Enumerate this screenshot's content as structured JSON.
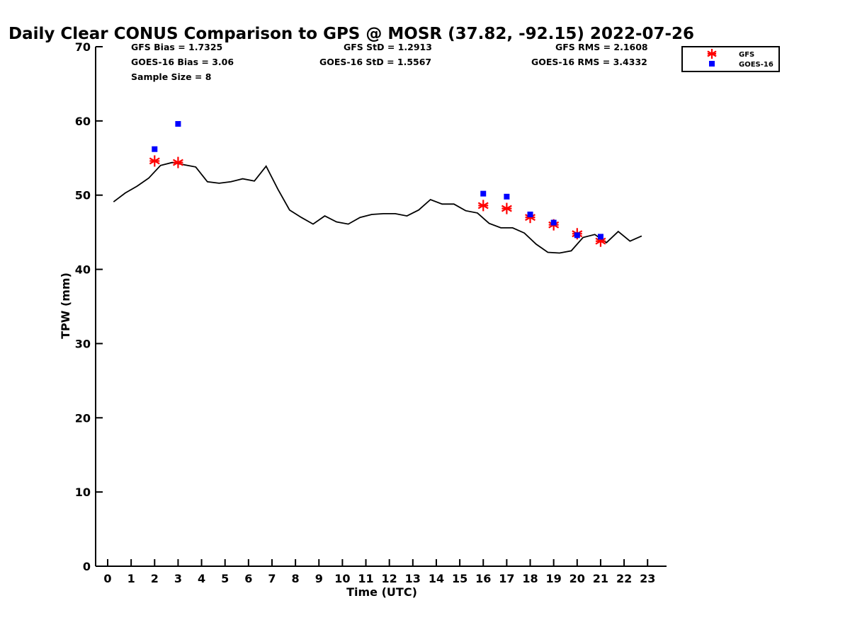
{
  "chart_data": {
    "type": "line",
    "title": "Daily Clear CONUS Comparison to GPS @ MOSR (37.82, -92.15) 2022-07-26",
    "xlabel": "Time (UTC)",
    "ylabel": "TPW (mm)",
    "xlim": [
      -0.5,
      23.7
    ],
    "ylim": [
      0,
      70
    ],
    "x_ticks": [
      "0",
      "1",
      "2",
      "3",
      "4",
      "5",
      "6",
      "7",
      "8",
      "9",
      "10",
      "11",
      "12",
      "13",
      "14",
      "15",
      "16",
      "17",
      "18",
      "19",
      "20",
      "21",
      "22",
      "23"
    ],
    "y_ticks": [
      "0",
      "10",
      "20",
      "30",
      "40",
      "50",
      "60",
      "70"
    ],
    "stats": {
      "gfs_bias": "GFS Bias = 1.7325",
      "goes_bias": "GOES-16 Bias = 3.06",
      "sample_size": "Sample Size = 8",
      "gfs_std": "GFS StD = 1.2913",
      "goes_std": "GOES-16 StD = 1.5567",
      "gfs_rms": "GFS RMS = 2.1608",
      "goes_rms": "GOES-16 RMS = 3.4332"
    },
    "legend": [
      {
        "name": "GFS",
        "marker": "asterisk",
        "color": "#ff0000"
      },
      {
        "name": "GOES-16",
        "marker": "square",
        "color": "#0000ff"
      }
    ],
    "legend_position": "top-right outside",
    "series": [
      {
        "name": "GPS",
        "style": "line",
        "color": "#000000",
        "x": [
          0.25,
          0.75,
          1.25,
          1.75,
          2.25,
          2.75,
          3.25,
          3.75,
          4.25,
          4.75,
          5.25,
          5.75,
          6.25,
          6.75,
          7.25,
          7.75,
          8.25,
          8.75,
          9.25,
          9.75,
          10.25,
          10.75,
          11.25,
          11.75,
          12.25,
          12.75,
          13.25,
          13.75,
          14.25,
          14.75,
          15.25,
          15.75,
          16.25,
          16.75,
          17.25,
          17.75,
          18.25,
          18.75,
          19.25,
          19.75,
          20.25,
          20.75,
          21.25,
          21.75,
          22.25,
          22.75
        ],
        "y": [
          49.1,
          50.3,
          51.2,
          52.3,
          54.0,
          54.4,
          54.1,
          53.8,
          51.8,
          51.6,
          51.8,
          52.2,
          51.9,
          53.9,
          50.8,
          48.0,
          47.0,
          46.1,
          47.2,
          46.4,
          46.1,
          47.0,
          47.4,
          47.5,
          47.5,
          47.2,
          48.0,
          49.4,
          48.8,
          48.8,
          47.9,
          47.6,
          46.2,
          45.6,
          45.6,
          44.9,
          43.4,
          42.3,
          42.2,
          42.5,
          44.3,
          44.7,
          43.6,
          45.1,
          43.8,
          44.5
        ]
      },
      {
        "name": "GFS",
        "style": "asterisk",
        "color": "#ff0000",
        "x": [
          2,
          3,
          16,
          17,
          18,
          19,
          20,
          21
        ],
        "y": [
          54.6,
          54.4,
          48.6,
          48.2,
          47.0,
          46.0,
          44.8,
          43.8
        ]
      },
      {
        "name": "GOES-16",
        "style": "square",
        "color": "#0000ff",
        "x": [
          2,
          3,
          16,
          17,
          18,
          19,
          20,
          21
        ],
        "y": [
          56.2,
          59.6,
          50.2,
          49.8,
          47.4,
          46.3,
          44.6,
          44.4
        ]
      }
    ]
  }
}
